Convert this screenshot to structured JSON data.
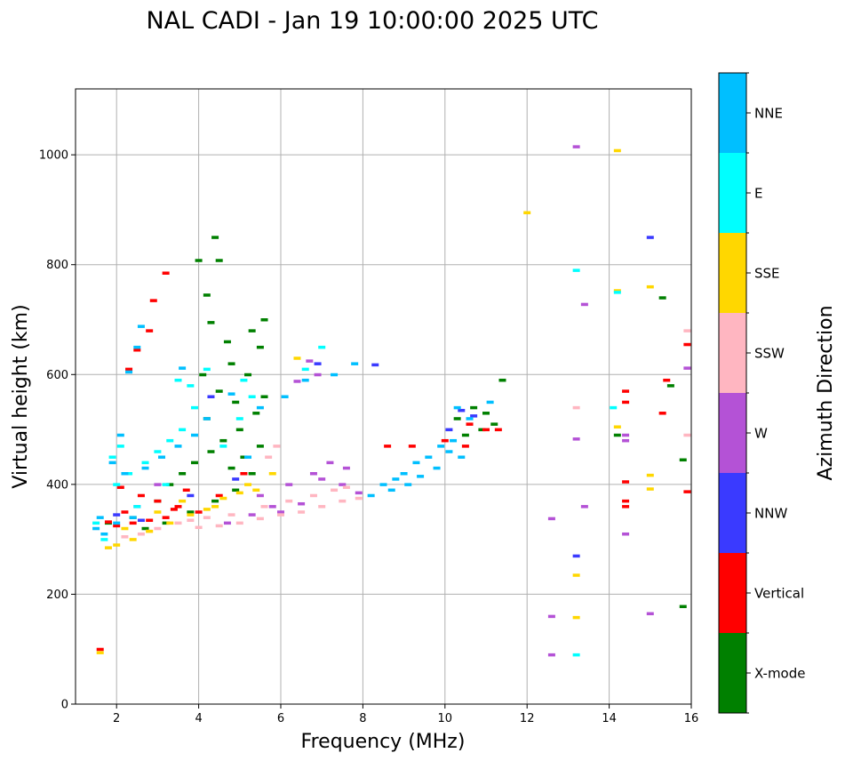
{
  "chart_data": {
    "type": "scatter",
    "title": "NAL CADI - Jan 19 10:00:00 2025 UTC",
    "xlabel": "Frequency (MHz)",
    "ylabel": "Virtual height (km)",
    "xlim": [
      1,
      16
    ],
    "ylim": [
      0,
      1120
    ],
    "xticks": [
      2,
      4,
      6,
      8,
      10,
      12,
      14,
      16
    ],
    "yticks": [
      0,
      200,
      400,
      600,
      800,
      1000
    ],
    "grid": true,
    "colorbar": {
      "label": "Azimuth Direction",
      "categories": [
        "X-mode",
        "Vertical",
        "NNW",
        "W",
        "SSW",
        "SSE",
        "E",
        "NNE"
      ],
      "colors": [
        "#008000",
        "#ff0000",
        "#3a3aff",
        "#b452d6",
        "#ffb6c1",
        "#ffd700",
        "#00ffff",
        "#00bfff"
      ]
    },
    "series": [
      {
        "name": "X-mode",
        "points": [
          [
            4.0,
            808
          ],
          [
            4.5,
            808
          ],
          [
            4.4,
            850
          ],
          [
            4.2,
            745
          ],
          [
            4.3,
            695
          ],
          [
            4.7,
            660
          ],
          [
            4.1,
            600
          ],
          [
            4.5,
            570
          ],
          [
            4.9,
            550
          ],
          [
            5.3,
            680
          ],
          [
            5.5,
            650
          ],
          [
            5.2,
            600
          ],
          [
            5.6,
            560
          ],
          [
            5.4,
            530
          ],
          [
            5.0,
            500
          ],
          [
            4.6,
            480
          ],
          [
            4.3,
            460
          ],
          [
            3.9,
            440
          ],
          [
            3.6,
            420
          ],
          [
            3.3,
            400
          ],
          [
            4.8,
            430
          ],
          [
            5.1,
            450
          ],
          [
            5.5,
            470
          ],
          [
            5.3,
            420
          ],
          [
            4.9,
            390
          ],
          [
            4.4,
            370
          ],
          [
            3.8,
            350
          ],
          [
            3.2,
            330
          ],
          [
            2.7,
            320
          ],
          [
            4.2,
            520
          ],
          [
            4.8,
            620
          ],
          [
            5.6,
            700
          ],
          [
            10.3,
            520
          ],
          [
            10.7,
            540
          ],
          [
            11.0,
            530
          ],
          [
            11.2,
            510
          ],
          [
            10.9,
            500
          ],
          [
            10.5,
            490
          ],
          [
            11.4,
            590
          ],
          [
            14.2,
            490
          ],
          [
            15.3,
            740
          ],
          [
            15.5,
            580
          ],
          [
            15.8,
            445
          ],
          [
            15.8,
            178
          ],
          [
            3.0,
            370
          ],
          [
            2.4,
            340
          ],
          [
            1.8,
            330
          ]
        ]
      },
      {
        "name": "Vertical",
        "points": [
          [
            1.6,
            100
          ],
          [
            3.2,
            785
          ],
          [
            2.9,
            735
          ],
          [
            2.8,
            680
          ],
          [
            2.5,
            645
          ],
          [
            2.3,
            610
          ],
          [
            2.1,
            395
          ],
          [
            2.6,
            380
          ],
          [
            3.0,
            370
          ],
          [
            3.5,
            360
          ],
          [
            4.0,
            350
          ],
          [
            3.2,
            340
          ],
          [
            2.8,
            335
          ],
          [
            2.4,
            330
          ],
          [
            2.0,
            325
          ],
          [
            1.8,
            332
          ],
          [
            3.7,
            390
          ],
          [
            4.5,
            380
          ],
          [
            5.1,
            420
          ],
          [
            8.6,
            470
          ],
          [
            9.2,
            470
          ],
          [
            10.0,
            480
          ],
          [
            10.6,
            510
          ],
          [
            11.0,
            500
          ],
          [
            11.3,
            500
          ],
          [
            10.5,
            470
          ],
          [
            14.4,
            570
          ],
          [
            14.4,
            550
          ],
          [
            14.4,
            405
          ],
          [
            14.4,
            370
          ],
          [
            14.4,
            360
          ],
          [
            15.3,
            530
          ],
          [
            15.4,
            590
          ],
          [
            15.9,
            655
          ],
          [
            15.9,
            387
          ],
          [
            2.2,
            350
          ],
          [
            3.4,
            355
          ]
        ]
      },
      {
        "name": "NNW",
        "points": [
          [
            15.0,
            850
          ],
          [
            13.2,
            270
          ],
          [
            10.4,
            535
          ],
          [
            10.7,
            525
          ],
          [
            10.1,
            500
          ],
          [
            8.3,
            618
          ],
          [
            6.9,
            620
          ],
          [
            4.3,
            560
          ],
          [
            2.6,
            335
          ],
          [
            3.8,
            380
          ],
          [
            2.0,
            345
          ],
          [
            4.9,
            410
          ]
        ]
      },
      {
        "name": "W",
        "points": [
          [
            13.2,
            1015
          ],
          [
            13.4,
            728
          ],
          [
            14.4,
            490
          ],
          [
            14.4,
            480
          ],
          [
            15.9,
            612
          ],
          [
            13.2,
            483
          ],
          [
            13.4,
            360
          ],
          [
            12.6,
            338
          ],
          [
            14.4,
            310
          ],
          [
            12.6,
            160
          ],
          [
            15.0,
            165
          ],
          [
            12.6,
            90
          ],
          [
            5.5,
            380
          ],
          [
            6.2,
            400
          ],
          [
            6.8,
            420
          ],
          [
            7.2,
            440
          ],
          [
            7.6,
            430
          ],
          [
            6.5,
            365
          ],
          [
            6.0,
            350
          ],
          [
            5.8,
            360
          ],
          [
            7.0,
            410
          ],
          [
            7.5,
            400
          ],
          [
            6.9,
            600
          ],
          [
            6.7,
            625
          ],
          [
            6.4,
            588
          ],
          [
            3.0,
            400
          ],
          [
            2.5,
            360
          ],
          [
            7.9,
            385
          ],
          [
            4.7,
            330
          ],
          [
            5.3,
            345
          ]
        ]
      },
      {
        "name": "SSW",
        "points": [
          [
            3.5,
            330
          ],
          [
            4.0,
            322
          ],
          [
            4.5,
            325
          ],
          [
            5.0,
            330
          ],
          [
            5.5,
            338
          ],
          [
            6.0,
            345
          ],
          [
            6.5,
            350
          ],
          [
            7.0,
            360
          ],
          [
            7.5,
            370
          ],
          [
            7.9,
            375
          ],
          [
            3.0,
            320
          ],
          [
            2.6,
            310
          ],
          [
            2.2,
            305
          ],
          [
            4.2,
            340
          ],
          [
            4.8,
            345
          ],
          [
            5.6,
            360
          ],
          [
            6.2,
            370
          ],
          [
            6.8,
            380
          ],
          [
            7.3,
            390
          ],
          [
            5.9,
            470
          ],
          [
            5.7,
            450
          ],
          [
            13.2,
            540
          ],
          [
            15.9,
            680
          ],
          [
            15.9,
            490
          ],
          [
            7.6,
            395
          ],
          [
            3.8,
            335
          ],
          [
            2.8,
            315
          ]
        ]
      },
      {
        "name": "SSE",
        "points": [
          [
            1.6,
            94
          ],
          [
            12.0,
            895
          ],
          [
            14.2,
            1008
          ],
          [
            14.2,
            753
          ],
          [
            15.0,
            760
          ],
          [
            14.2,
            505
          ],
          [
            15.0,
            417
          ],
          [
            15.0,
            392
          ],
          [
            13.2,
            235
          ],
          [
            13.2,
            158
          ],
          [
            1.8,
            285
          ],
          [
            2.0,
            290
          ],
          [
            2.4,
            300
          ],
          [
            2.8,
            315
          ],
          [
            3.3,
            330
          ],
          [
            3.8,
            345
          ],
          [
            4.2,
            355
          ],
          [
            4.6,
            375
          ],
          [
            5.0,
            385
          ],
          [
            5.4,
            390
          ],
          [
            5.8,
            420
          ],
          [
            6.4,
            630
          ],
          [
            2.2,
            320
          ],
          [
            3.0,
            350
          ],
          [
            3.6,
            370
          ],
          [
            4.4,
            360
          ],
          [
            5.2,
            400
          ]
        ]
      },
      {
        "name": "E",
        "points": [
          [
            13.2,
            790
          ],
          [
            14.2,
            750
          ],
          [
            14.1,
            540
          ],
          [
            13.2,
            90
          ],
          [
            1.5,
            330
          ],
          [
            2.0,
            400
          ],
          [
            2.3,
            420
          ],
          [
            2.7,
            440
          ],
          [
            3.0,
            460
          ],
          [
            3.3,
            480
          ],
          [
            3.6,
            500
          ],
          [
            3.9,
            540
          ],
          [
            3.5,
            590
          ],
          [
            3.8,
            580
          ],
          [
            4.6,
            470
          ],
          [
            5.0,
            520
          ],
          [
            5.3,
            560
          ],
          [
            4.2,
            610
          ],
          [
            5.1,
            590
          ],
          [
            1.9,
            450
          ],
          [
            2.1,
            470
          ],
          [
            7.0,
            650
          ],
          [
            6.6,
            610
          ],
          [
            1.7,
            300
          ],
          [
            2.5,
            360
          ],
          [
            3.2,
            400
          ]
        ]
      },
      {
        "name": "NNE",
        "points": [
          [
            2.3,
            605
          ],
          [
            2.5,
            650
          ],
          [
            2.6,
            688
          ],
          [
            2.1,
            490
          ],
          [
            1.9,
            440
          ],
          [
            2.2,
            420
          ],
          [
            2.7,
            430
          ],
          [
            3.1,
            450
          ],
          [
            3.5,
            470
          ],
          [
            3.9,
            490
          ],
          [
            4.2,
            520
          ],
          [
            3.6,
            612
          ],
          [
            4.8,
            565
          ],
          [
            5.2,
            450
          ],
          [
            6.6,
            590
          ],
          [
            7.3,
            600
          ],
          [
            7.8,
            620
          ],
          [
            8.2,
            380
          ],
          [
            8.5,
            400
          ],
          [
            8.8,
            410
          ],
          [
            9.0,
            420
          ],
          [
            9.3,
            440
          ],
          [
            9.6,
            450
          ],
          [
            9.9,
            470
          ],
          [
            10.1,
            460
          ],
          [
            10.4,
            450
          ],
          [
            8.7,
            390
          ],
          [
            9.1,
            400
          ],
          [
            9.4,
            415
          ],
          [
            9.8,
            430
          ],
          [
            10.2,
            480
          ],
          [
            10.6,
            520
          ],
          [
            10.3,
            540
          ],
          [
            11.1,
            550
          ],
          [
            1.6,
            340
          ],
          [
            1.5,
            320
          ],
          [
            1.7,
            310
          ],
          [
            2.0,
            330
          ],
          [
            2.4,
            340
          ],
          [
            6.1,
            560
          ],
          [
            5.5,
            540
          ]
        ]
      }
    ]
  }
}
